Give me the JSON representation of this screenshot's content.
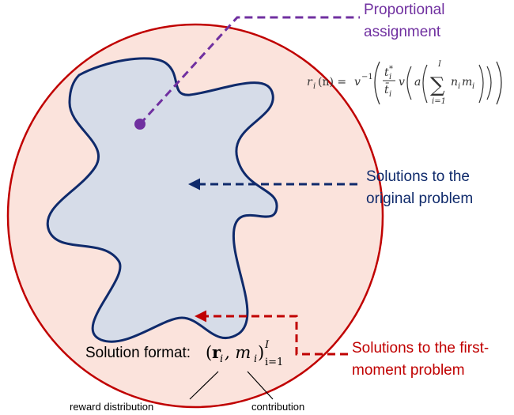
{
  "labels": {
    "proportional": [
      "Proportional",
      "assignment"
    ],
    "original": [
      "Solutions to the",
      "original problem"
    ],
    "first_moment": [
      "Solutions to the first-",
      "moment problem"
    ],
    "solution_format": "Solution format:",
    "reward_distribution": "reward distribution",
    "contribution": "contribution"
  },
  "formula": {
    "lhs": "r",
    "lhs_sub": "i",
    "lhs_arg": "(n) =",
    "inv": "v",
    "inv_sup": "−1",
    "num": "t",
    "num_sub": "i",
    "num_sup": "*",
    "den": "t̄",
    "den_sub": "i",
    "v": "v",
    "a": "a",
    "sum": "∑",
    "sum_top": "I",
    "sum_bottom": "i=1",
    "n": "n",
    "n_sub": "i",
    "m": "m",
    "m_sub": "i"
  },
  "format_math": {
    "open": "(",
    "r": "r",
    "r_sub": "i",
    "comma": ", m",
    "m_sub": "i",
    "close": ")",
    "sup": "I",
    "sub": "i=1"
  }
}
